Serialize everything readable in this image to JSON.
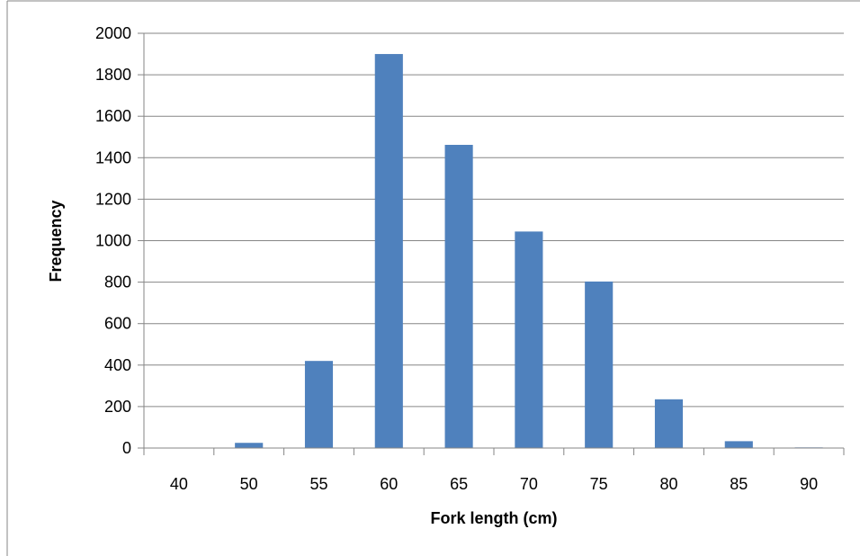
{
  "chart_data": {
    "type": "bar",
    "title": "",
    "xlabel": "Fork length (cm)",
    "ylabel": "Frequency",
    "categories": [
      "40",
      "50",
      "55",
      "60",
      "65",
      "70",
      "75",
      "80",
      "85",
      "90"
    ],
    "values": [
      0,
      25,
      420,
      1900,
      1462,
      1044,
      803,
      235,
      33,
      3
    ],
    "ylim": [
      0,
      2000
    ],
    "yticks": [
      0,
      200,
      400,
      600,
      800,
      1000,
      1200,
      1400,
      1600,
      1800,
      2000
    ],
    "ytick_labels": [
      "0",
      "200",
      "400",
      "600",
      "800",
      "1000",
      "1200",
      "1400",
      "1600",
      "1800",
      "2000"
    ],
    "grid": true,
    "legend": "none",
    "colors": {
      "bar": "#4f81bd",
      "grid": "#868686",
      "frame": "#868686"
    }
  }
}
